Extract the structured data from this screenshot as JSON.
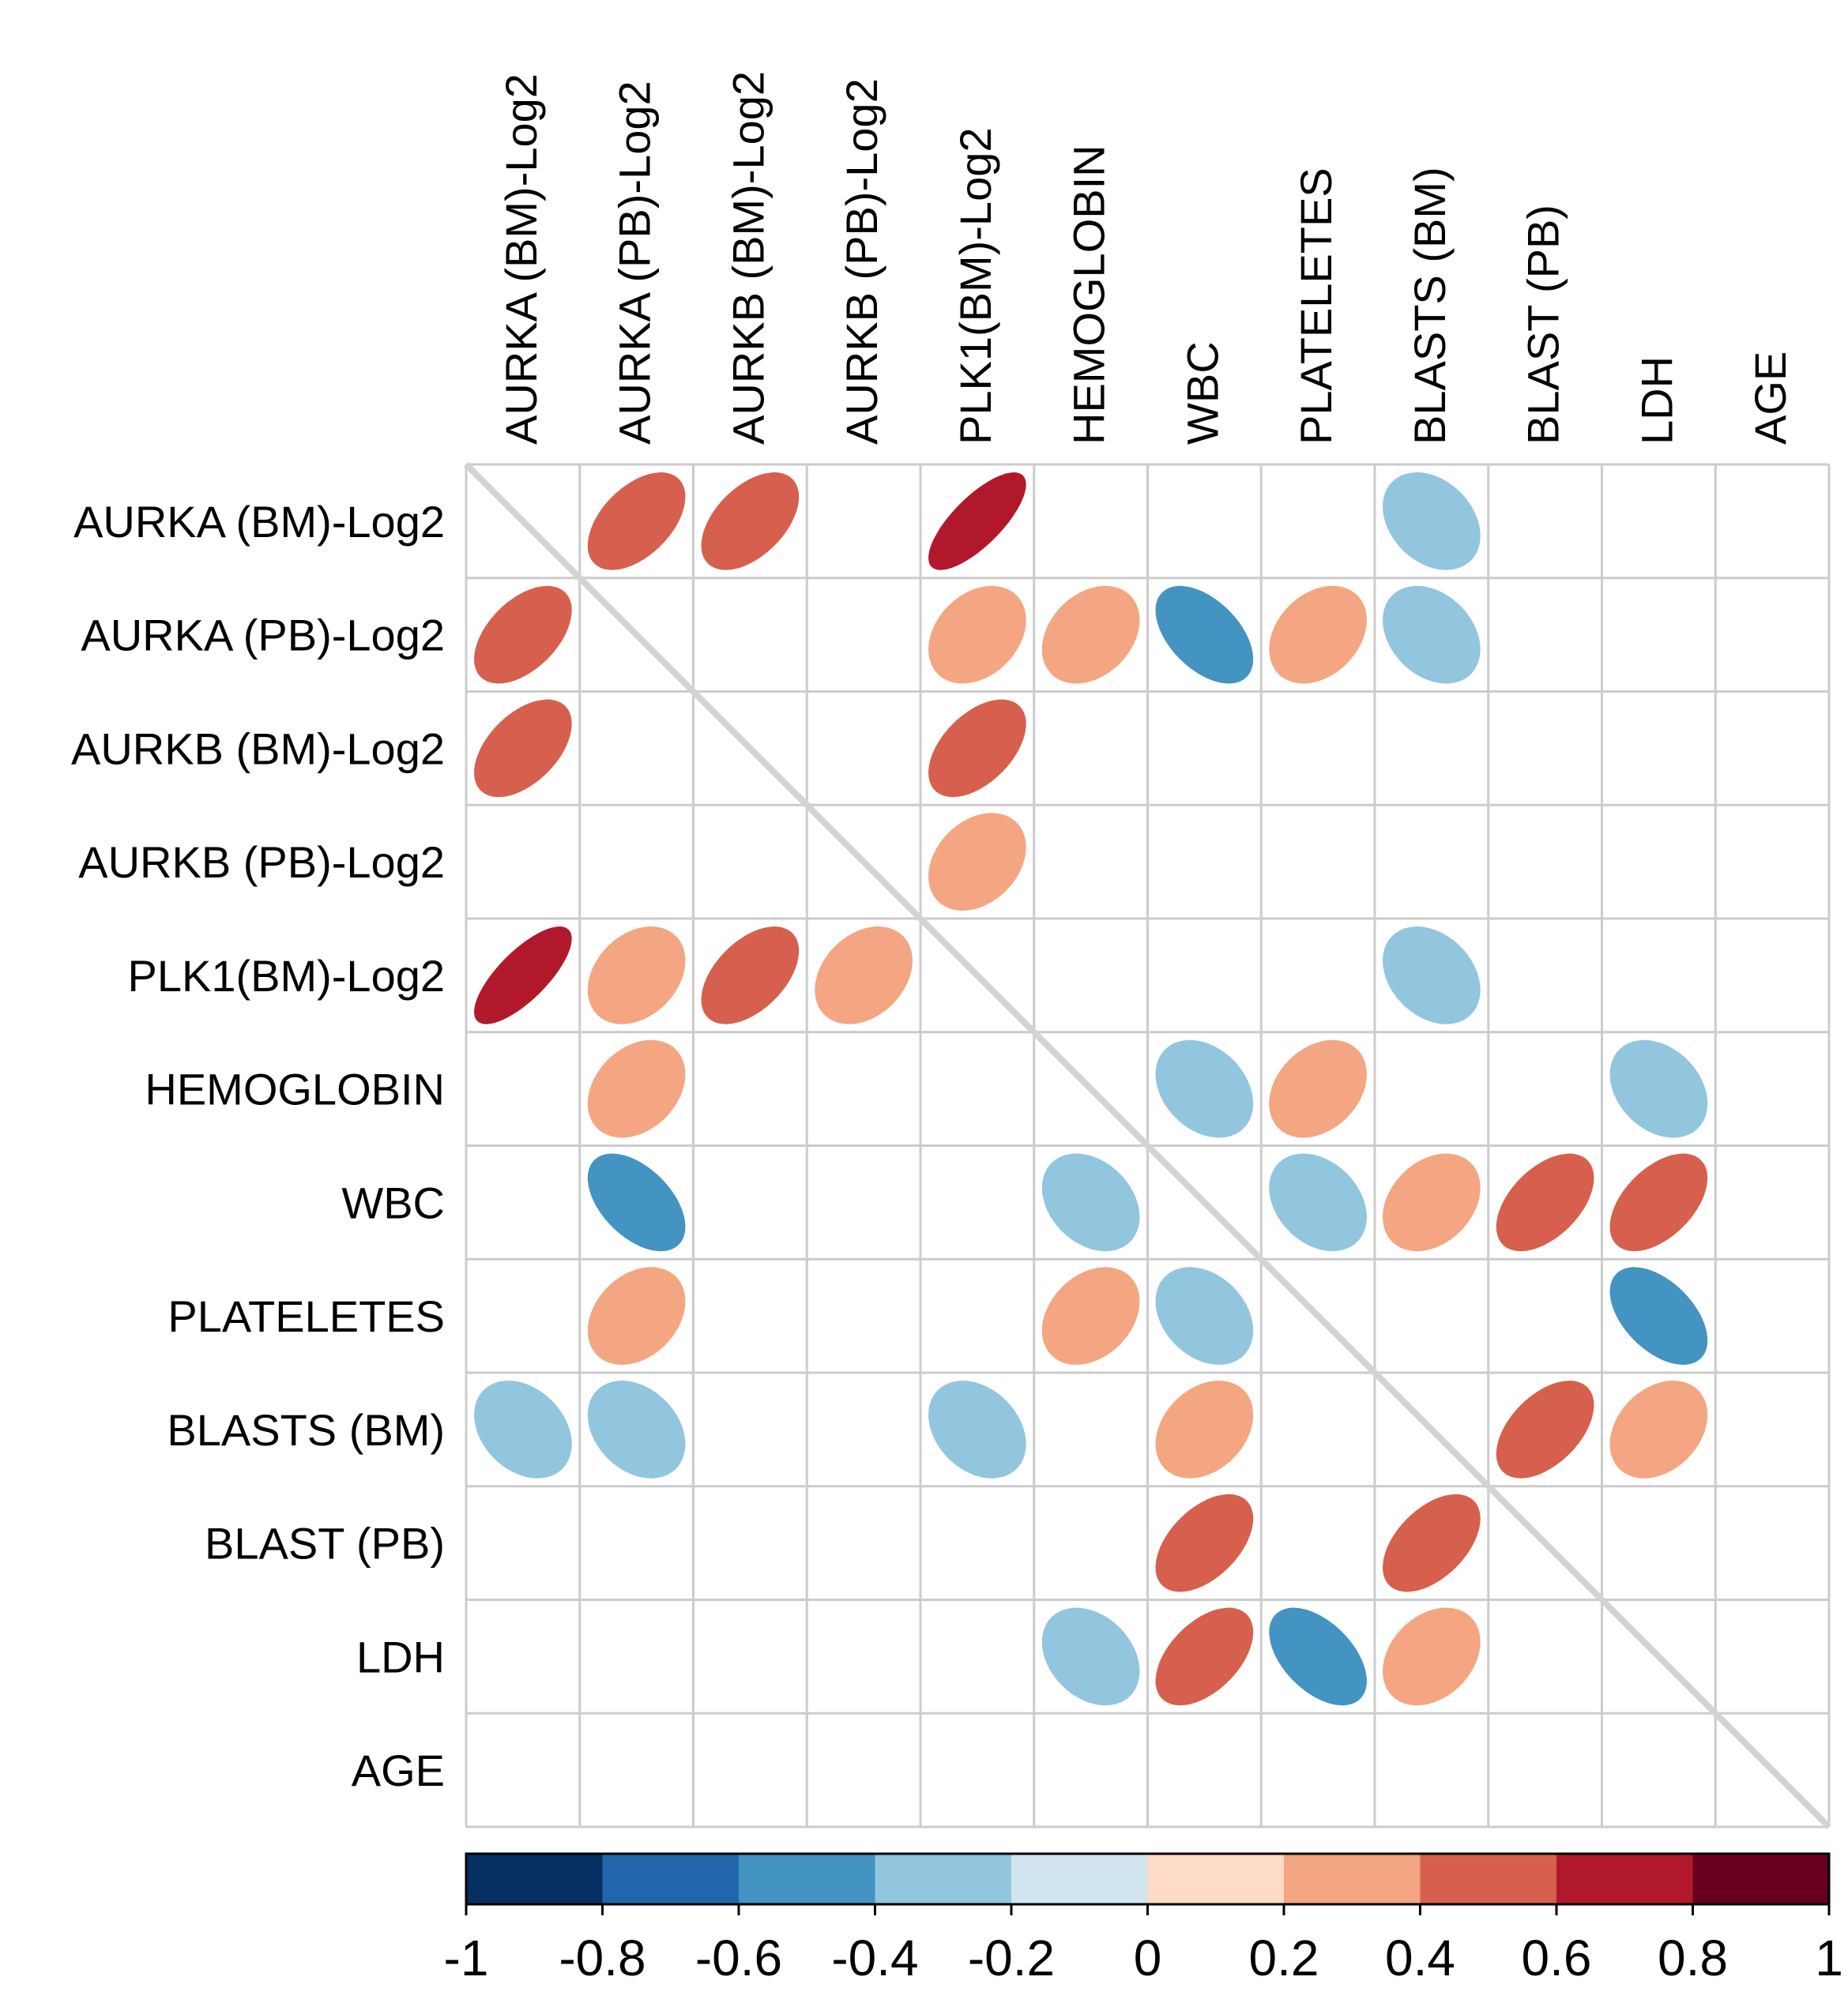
{
  "chart_data": {
    "type": "heatmap",
    "subtype": "correlation-ellipse",
    "title": "",
    "variables": [
      "AURKA (BM)-Log2",
      "AURKA (PB)-Log2",
      "AURKB (BM)-Log2",
      "AURKB (PB)-Log2",
      "PLK1(BM)-Log2",
      "HEMOGLOBIN",
      "WBC",
      "PLATELETES",
      "BLASTS (BM)",
      "BLAST (PB)",
      "LDH",
      "AGE"
    ],
    "significant_correlations": [
      {
        "a": 0,
        "b": 1,
        "r": 0.5
      },
      {
        "a": 0,
        "b": 2,
        "r": 0.5
      },
      {
        "a": 0,
        "b": 4,
        "r": 0.75
      },
      {
        "a": 0,
        "b": 8,
        "r": -0.3
      },
      {
        "a": 1,
        "b": 4,
        "r": 0.3
      },
      {
        "a": 1,
        "b": 5,
        "r": 0.3
      },
      {
        "a": 1,
        "b": 6,
        "r": -0.5
      },
      {
        "a": 1,
        "b": 7,
        "r": 0.3
      },
      {
        "a": 1,
        "b": 8,
        "r": -0.3
      },
      {
        "a": 2,
        "b": 4,
        "r": 0.5
      },
      {
        "a": 3,
        "b": 4,
        "r": 0.3
      },
      {
        "a": 4,
        "b": 8,
        "r": -0.3
      },
      {
        "a": 5,
        "b": 6,
        "r": -0.3
      },
      {
        "a": 5,
        "b": 7,
        "r": 0.3
      },
      {
        "a": 5,
        "b": 10,
        "r": -0.3
      },
      {
        "a": 6,
        "b": 7,
        "r": -0.3
      },
      {
        "a": 6,
        "b": 8,
        "r": 0.3
      },
      {
        "a": 6,
        "b": 9,
        "r": 0.5
      },
      {
        "a": 6,
        "b": 10,
        "r": 0.5
      },
      {
        "a": 7,
        "b": 10,
        "r": -0.5
      },
      {
        "a": 8,
        "b": 9,
        "r": 0.5
      },
      {
        "a": 8,
        "b": 10,
        "r": 0.3
      }
    ],
    "color_scale": {
      "min": -1,
      "max": 1,
      "ticks": [
        "-1",
        "-0.8",
        "-0.6",
        "-0.4",
        "-0.2",
        "0",
        "0.2",
        "0.4",
        "0.6",
        "0.8",
        "1"
      ],
      "colors": [
        "#053061",
        "#2166ac",
        "#4393c3",
        "#92c5de",
        "#d1e5f0",
        "#fddbc7",
        "#f4a582",
        "#d6604d",
        "#b2182b",
        "#67001f"
      ]
    },
    "grid_color": "#cccccc",
    "diagonal_color": "#d3d3d3"
  }
}
